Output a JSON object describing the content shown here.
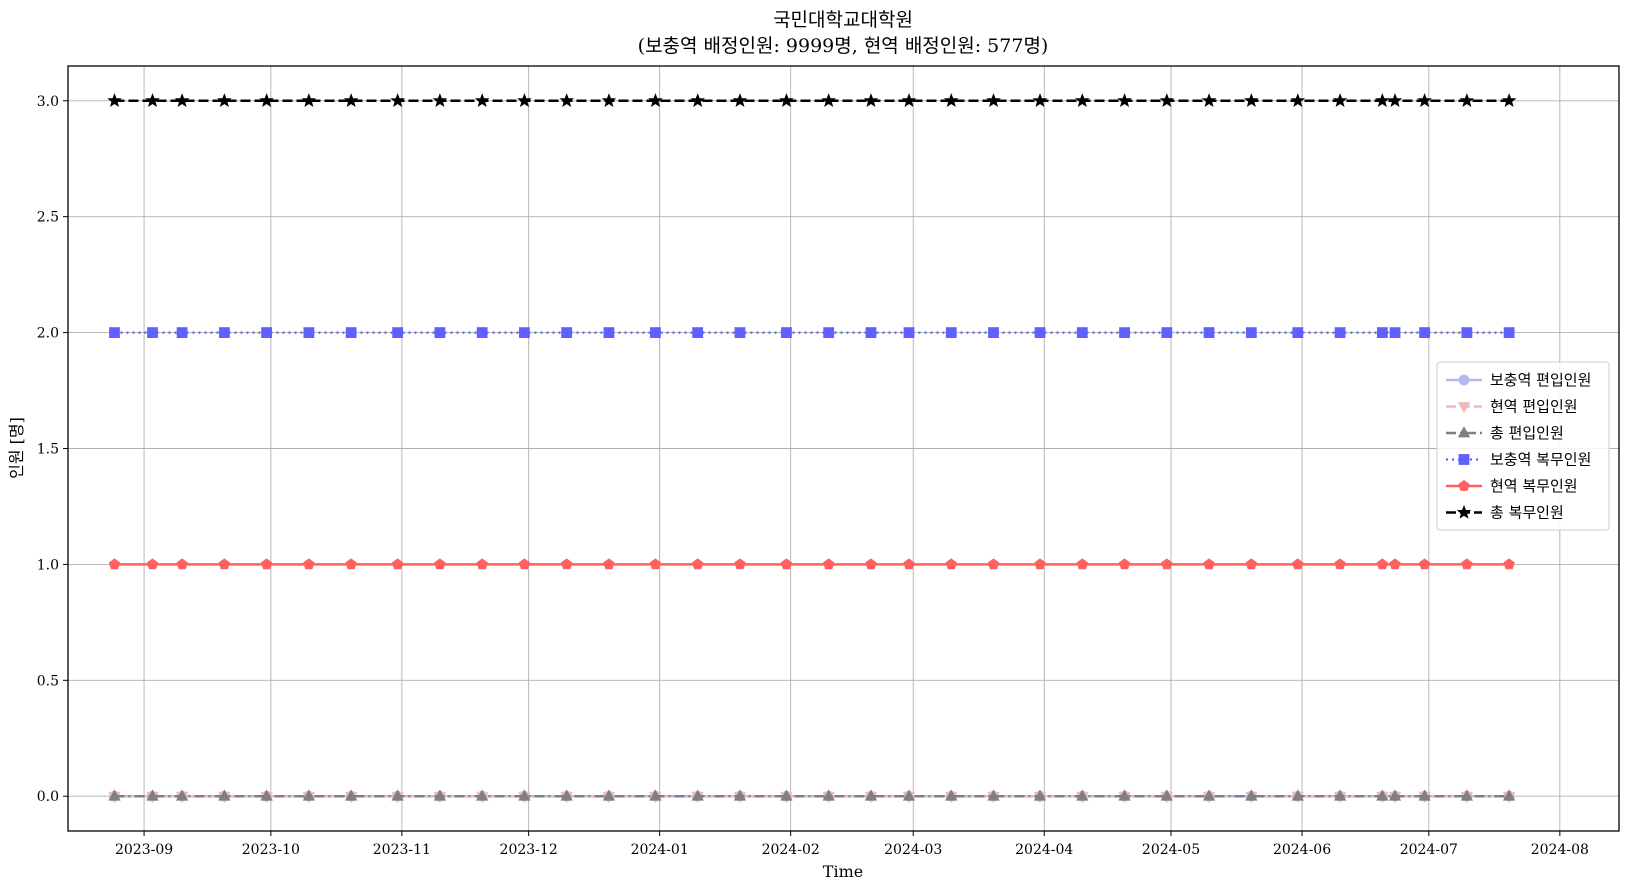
{
  "chart_data": {
    "type": "line",
    "title": "국민대학교대학원",
    "subtitle": "(보충역 배정인원: 9999명, 현역 배정인원: 577명)",
    "xlabel": "Time",
    "ylabel": "인원 [명]",
    "ylim": [
      -0.15,
      3.15
    ],
    "yticks": [
      0.0,
      0.5,
      1.0,
      1.5,
      2.0,
      2.5,
      3.0
    ],
    "ytick_labels": [
      "0.0",
      "0.5",
      "1.0",
      "1.5",
      "2.0",
      "2.5",
      "3.0"
    ],
    "xlim": [
      "2023-08-14",
      "2024-08-15"
    ],
    "xticks": [
      "2023-09-01",
      "2023-10-01",
      "2023-11-01",
      "2023-12-01",
      "2024-01-01",
      "2024-02-01",
      "2024-03-01",
      "2024-04-01",
      "2024-05-01",
      "2024-06-01",
      "2024-07-01",
      "2024-08-01"
    ],
    "xtick_labels": [
      "2023-09",
      "2023-10",
      "2023-11",
      "2023-12",
      "2024-01",
      "2024-02",
      "2024-03",
      "2024-04",
      "2024-05",
      "2024-06",
      "2024-07",
      "2024-08"
    ],
    "grid": true,
    "legend_position": "center-right",
    "x": [
      "2023-08-25",
      "2023-09-03",
      "2023-09-10",
      "2023-09-20",
      "2023-09-30",
      "2023-10-10",
      "2023-10-20",
      "2023-10-31",
      "2023-11-10",
      "2023-11-20",
      "2023-11-30",
      "2023-12-10",
      "2023-12-20",
      "2023-12-31",
      "2024-01-10",
      "2024-01-20",
      "2024-01-31",
      "2024-02-10",
      "2024-02-20",
      "2024-02-29",
      "2024-03-10",
      "2024-03-20",
      "2024-03-31",
      "2024-04-10",
      "2024-04-20",
      "2024-04-30",
      "2024-05-10",
      "2024-05-20",
      "2024-05-31",
      "2024-06-10",
      "2024-06-20",
      "2024-06-23",
      "2024-06-30",
      "2024-07-10",
      "2024-07-20"
    ],
    "series": [
      {
        "name": "보충역 편입인원",
        "value": 0,
        "color": "#b8b8f0",
        "linestyle": "solid",
        "marker": "circle",
        "linewidth": 2.5
      },
      {
        "name": "현역 편입인원",
        "value": 0,
        "color": "#f0b8b8",
        "linestyle": "dashed",
        "marker": "triangle-down",
        "linewidth": 2.5
      },
      {
        "name": "총 편입인원",
        "value": 0,
        "color": "#808080",
        "linestyle": "dashdot",
        "marker": "triangle-up",
        "linewidth": 2.5
      },
      {
        "name": "보충역 복무인원",
        "value": 2,
        "color": "#6060ff",
        "linestyle": "dotted",
        "marker": "square",
        "linewidth": 2.2
      },
      {
        "name": "현역 복무인원",
        "value": 1,
        "color": "#ff6060",
        "linestyle": "solid",
        "marker": "pentagon",
        "linewidth": 2.5
      },
      {
        "name": "총 복무인원",
        "value": 3,
        "color": "#000000",
        "linestyle": "dashed",
        "marker": "star",
        "linewidth": 2.5
      }
    ]
  }
}
